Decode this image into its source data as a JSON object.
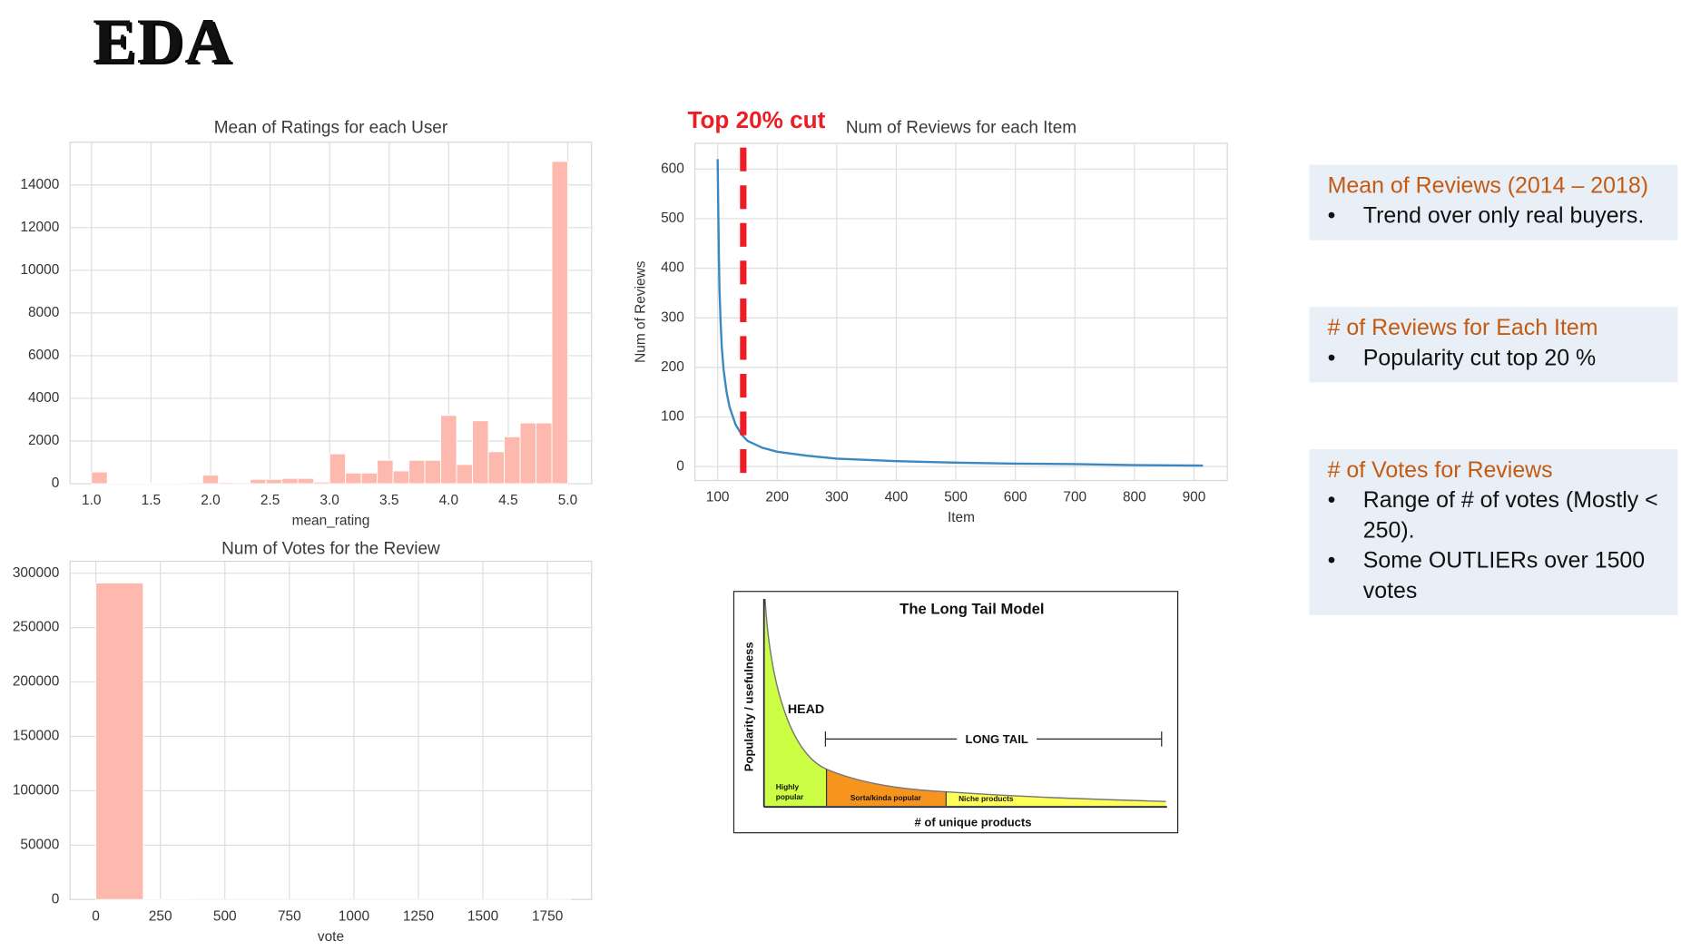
{
  "slide_title": "EDA",
  "chart_data": [
    {
      "type": "histogram",
      "title": "Mean of Ratings for each User",
      "xlabel": "mean_rating",
      "bins": [
        1,
        1.1333,
        1.2667,
        1.4,
        1.5333,
        1.6667,
        1.8,
        1.9333,
        2.0667,
        2.2,
        2.3333,
        2.4667,
        2.6,
        2.7333,
        2.8667,
        3,
        3.1333,
        3.2667,
        3.4,
        3.5333,
        3.6667,
        3.8,
        3.9333,
        4.0667,
        4.2,
        4.3333,
        4.4667,
        4.6,
        4.7333,
        4.8667,
        5
      ],
      "counts": [
        550,
        30,
        30,
        40,
        10,
        40,
        50,
        400,
        60,
        50,
        200,
        200,
        250,
        250,
        80,
        1400,
        500,
        500,
        1100,
        600,
        1100,
        1100,
        3200,
        900,
        2950,
        1500,
        2200,
        2850,
        2850,
        15100
      ],
      "color": "#fdb9ae",
      "grid": true,
      "xlim": [
        0.82,
        5.2
      ],
      "ylim": [
        0,
        16000
      ],
      "xticks": [
        {
          "value": 1,
          "label": "1.0"
        },
        1.5,
        {
          "value": 2,
          "label": "2.0"
        },
        2.5,
        {
          "value": 3,
          "label": "3.0"
        },
        3.5,
        {
          "value": 4,
          "label": "4.0"
        },
        4.5,
        {
          "value": 5,
          "label": "5.0"
        }
      ],
      "yticks": [
        0,
        2000,
        4000,
        6000,
        8000,
        10000,
        12000,
        14000
      ]
    },
    {
      "type": "line",
      "title": "Num of Reviews for each Item",
      "xlabel": "Item",
      "ylabel": "Num of Reviews",
      "x": [
        100,
        101,
        102,
        103,
        105,
        107,
        110,
        115,
        120,
        130,
        140,
        150,
        175,
        200,
        250,
        300,
        400,
        500,
        600,
        700,
        800,
        915
      ],
      "values": [
        620,
        520,
        430,
        360,
        290,
        240,
        195,
        150,
        120,
        85,
        65,
        52,
        38,
        30,
        22,
        16,
        11,
        8,
        6,
        5,
        3,
        2
      ],
      "color": "#3a87c2",
      "grid": true,
      "xlim": [
        62,
        956
      ],
      "ylim": [
        -28,
        652
      ],
      "xticks": [
        100,
        200,
        300,
        400,
        500,
        600,
        700,
        800,
        900
      ],
      "yticks": [
        0,
        100,
        200,
        300,
        400,
        500,
        600
      ],
      "annotation": "Top 20% cut",
      "cut_x": 143,
      "cut_color": "#ee1c25"
    },
    {
      "type": "histogram",
      "title": "Num of Votes for the Review",
      "xlabel": "vote",
      "bins": [
        0,
        184,
        368,
        552,
        736,
        920,
        1104,
        1288,
        1472,
        1656,
        1840
      ],
      "counts": [
        291000,
        300,
        50,
        20,
        10,
        5,
        3,
        2,
        1,
        1
      ],
      "color": "#fdb9ae",
      "grid": true,
      "xlim": [
        -100,
        1921
      ],
      "ylim": [
        0,
        311000
      ],
      "xticks": [
        0,
        250,
        500,
        750,
        1000,
        1250,
        1500,
        1750
      ],
      "yticks": [
        0,
        50000,
        100000,
        150000,
        200000,
        250000,
        300000
      ]
    }
  ],
  "long_tail": {
    "title": "The Long Tail Model",
    "ylabel": "Popularity / usefulness",
    "xlabel": "# of unique products",
    "head": "HEAD",
    "tail": "LONG TAIL",
    "seg1": "Highly popular",
    "seg2": "Sorta/kinda popular",
    "seg3": "Niche products"
  },
  "notes": [
    {
      "heading": "Mean of Reviews (2014 – 2018)",
      "items": [
        "Trend over only real buyers."
      ]
    },
    {
      "heading": "# of Reviews for Each Item",
      "items": [
        "Popularity cut top 20 %"
      ]
    },
    {
      "heading": "# of Votes for Reviews",
      "items": [
        "Range of # of votes (Mostly < 250).",
        " Some OUTLIERs over 1500 votes"
      ]
    }
  ]
}
